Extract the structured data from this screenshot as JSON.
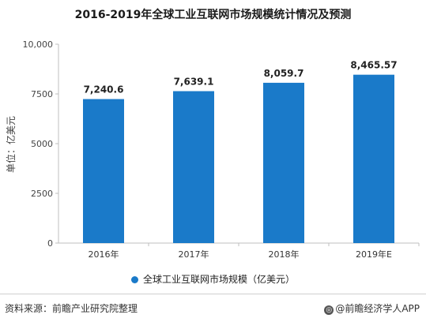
{
  "title": "2016-2019年全球工业互联网市场规模统计情况及预测",
  "colors": {
    "bar": "#1A7AC9",
    "axis": "#bfbfbf"
  },
  "chart_data": {
    "type": "bar",
    "categories": [
      "2016年",
      "2017年",
      "2018年",
      "2019年E"
    ],
    "values": [
      7240.6,
      7639.1,
      8059.7,
      8465.57
    ],
    "value_labels": [
      "7,240.6",
      "7,639.1",
      "8,059.7",
      "8,465.57"
    ],
    "ylabel": "单位：亿美元",
    "ylim": [
      0,
      10000
    ],
    "yticks": [
      0,
      2500,
      5000,
      7500,
      10000
    ],
    "ytick_labels": [
      "0",
      "2500",
      "5000",
      "7500",
      "10,000"
    ],
    "grid": false,
    "legend": {
      "position": "bottom",
      "entries": [
        "全球工业互联网市场规模（亿美元）"
      ]
    }
  },
  "footer": {
    "source": "资料来源：前瞻产业研究院整理",
    "brand": "@前瞻经济学人APP",
    "brand_icon": "circle-logo-icon"
  }
}
